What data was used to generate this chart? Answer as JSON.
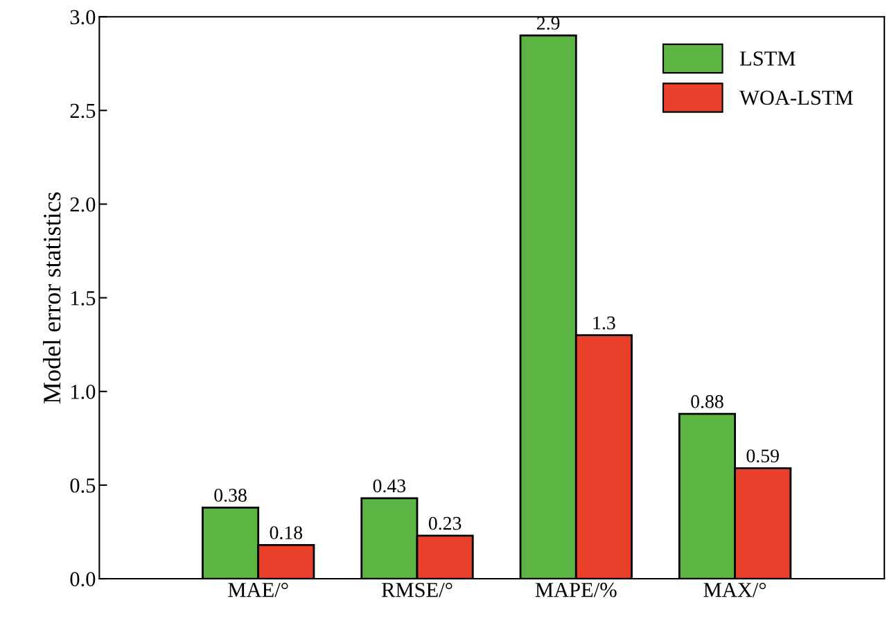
{
  "chart_data": {
    "type": "bar",
    "ylabel": "Model error statistics",
    "categories": [
      "MAE/°",
      "RMSE/°",
      "MAPE/%",
      "MAX/°"
    ],
    "series": [
      {
        "name": "LSTM",
        "color": "#5cb443",
        "values": [
          0.38,
          0.43,
          2.9,
          0.88
        ]
      },
      {
        "name": "WOA-LSTM",
        "color": "#e8402b",
        "values": [
          0.18,
          0.23,
          1.3,
          0.59
        ]
      }
    ],
    "ylim": [
      0.0,
      3.0
    ],
    "yticks": [
      {
        "value": 0,
        "label": "0.0"
      },
      0.5,
      {
        "value": 1,
        "label": "1.0"
      },
      1.5,
      {
        "value": 2,
        "label": "2.0"
      },
      2.5,
      {
        "value": 3,
        "label": "3.0"
      }
    ],
    "data_labels": true,
    "legend": "top right",
    "grid": false
  }
}
